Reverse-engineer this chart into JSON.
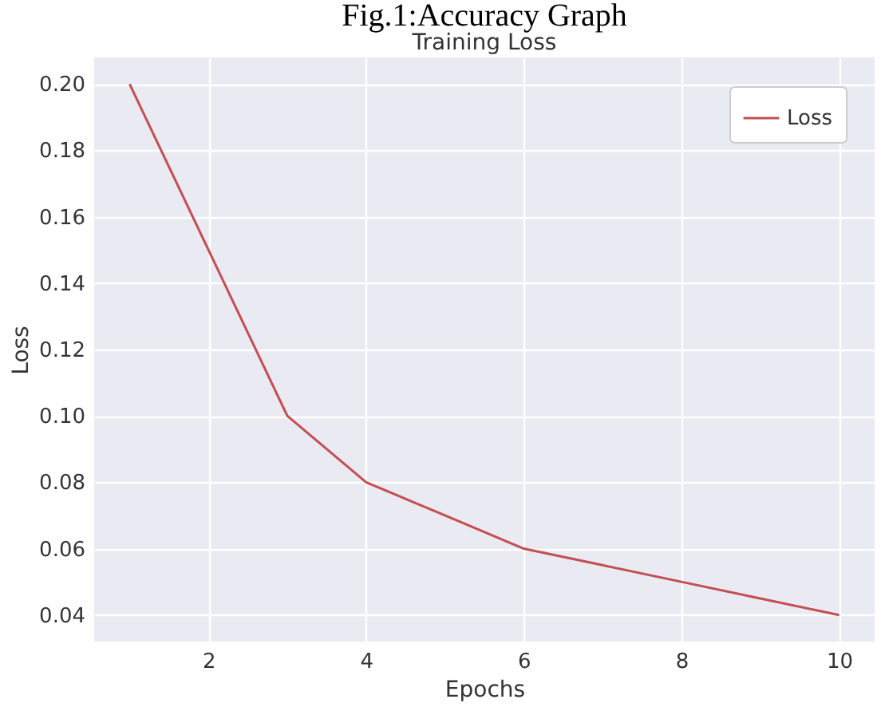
{
  "chart_data": {
    "type": "line",
    "title": "Training Loss",
    "xlabel": "Epochs",
    "ylabel": "Loss",
    "annotations": [
      "Fig.1:Accuracy Graph"
    ],
    "x": [
      1,
      2,
      3,
      4,
      5,
      6,
      7,
      8,
      9,
      10
    ],
    "series": [
      {
        "name": "Loss",
        "color": "#c44e52",
        "values": [
          0.2,
          0.15,
          0.1,
          0.08,
          0.07,
          0.06,
          0.055,
          0.05,
          0.045,
          0.04
        ]
      }
    ],
    "xlim": [
      0.55,
      10.45
    ],
    "xticks": [
      2,
      4,
      6,
      8,
      10
    ],
    "ylim": [
      0.032,
      0.208
    ],
    "yticks": [
      {
        "value": 0.04,
        "label": "0.04"
      },
      {
        "value": 0.06,
        "label": "0.06"
      },
      {
        "value": 0.08,
        "label": "0.08"
      },
      {
        "value": 0.1,
        "label": "0.10"
      },
      {
        "value": 0.12,
        "label": "0.12"
      },
      {
        "value": 0.14,
        "label": "0.14"
      },
      {
        "value": 0.16,
        "label": "0.16"
      },
      {
        "value": 0.18,
        "label": "0.18"
      },
      {
        "value": 0.2,
        "label": "0.20"
      }
    ],
    "grid": true,
    "legend": "top right",
    "marker": "none",
    "line_style": "solid"
  }
}
